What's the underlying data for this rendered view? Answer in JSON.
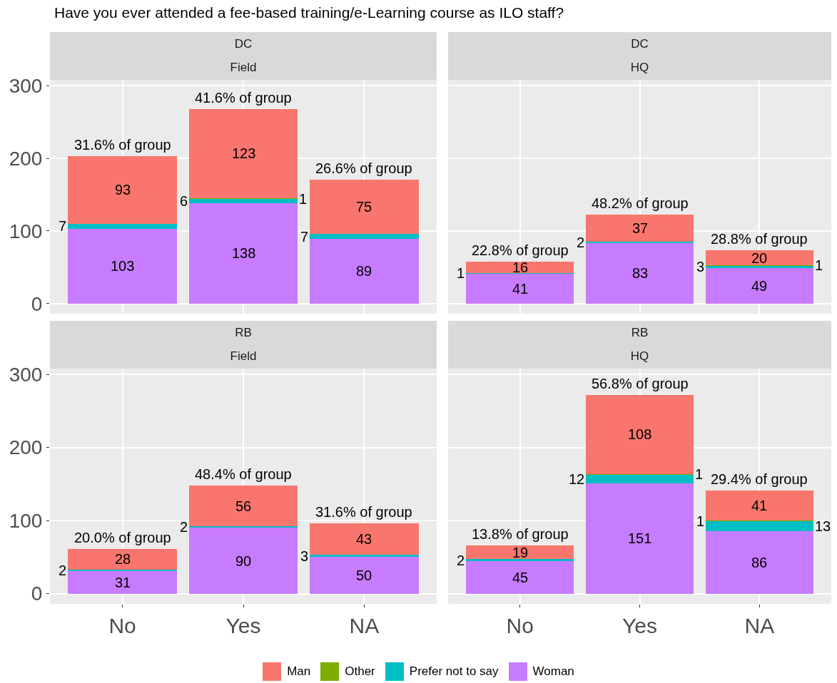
{
  "chart_data": [
    {
      "type": "bar",
      "title": "DC",
      "subtitle": "Field",
      "categories": [
        "No",
        "Yes",
        "NA"
      ],
      "stacked": true,
      "data_labels": true,
      "ylim": [
        -14,
        308
      ],
      "yticks": [
        0,
        100,
        200,
        300
      ],
      "grid": true,
      "legend": "bottom",
      "tick_labels": "y",
      "annotations": [
        "Have you ever attended a fee-based training/e-Learning course as ILO staff?",
        {
          "text": "31.6% of group",
          "x": "No",
          "y": 203
        },
        {
          "text": "41.6% of group",
          "x": "Yes",
          "y": 268
        },
        {
          "text": "26.6% of group",
          "x": "NA",
          "y": 171
        }
      ],
      "series": [
        {
          "name": "Woman",
          "color": "#c77cff",
          "values": [
            103,
            138,
            89
          ]
        },
        {
          "name": "Prefer not to say",
          "color": "#00bfc4",
          "values": [
            7,
            6,
            7
          ]
        },
        {
          "name": "Other",
          "color": "#7cae00",
          "values": [
            null,
            1,
            null
          ]
        },
        {
          "name": "Man",
          "color": "#f8766d",
          "values": [
            93,
            123,
            75
          ]
        }
      ]
    },
    {
      "type": "bar",
      "title": "DC",
      "subtitle": "HQ",
      "categories": [
        "No",
        "Yes",
        "NA"
      ],
      "stacked": true,
      "data_labels": true,
      "ylim": [
        -14,
        308
      ],
      "yticks": [
        0,
        100,
        200,
        300
      ],
      "grid": true,
      "tick_labels": false,
      "annotations": [
        {
          "text": "22.8% of group",
          "x": "No",
          "y": 58
        },
        {
          "text": "48.2% of group",
          "x": "Yes",
          "y": 122
        },
        {
          "text": "28.8% of group",
          "x": "NA",
          "y": 73
        }
      ],
      "series": [
        {
          "name": "Woman",
          "color": "#c77cff",
          "values": [
            41,
            83,
            49
          ]
        },
        {
          "name": "Prefer not to say",
          "color": "#00bfc4",
          "values": [
            1,
            2,
            3
          ]
        },
        {
          "name": "Other",
          "color": "#7cae00",
          "values": [
            null,
            null,
            1
          ]
        },
        {
          "name": "Man",
          "color": "#f8766d",
          "values": [
            16,
            37,
            20
          ]
        }
      ]
    },
    {
      "type": "bar",
      "title": "RB",
      "subtitle": "Field",
      "categories": [
        "No",
        "Yes",
        "NA"
      ],
      "stacked": true,
      "data_labels": true,
      "ylim": [
        -14,
        308
      ],
      "yticks": [
        0,
        100,
        200,
        300
      ],
      "grid": true,
      "annotations": [
        {
          "text": "20.0% of group",
          "x": "No",
          "y": 61
        },
        {
          "text": "48.4% of group",
          "x": "Yes",
          "y": 148
        },
        {
          "text": "31.6% of group",
          "x": "NA",
          "y": 96
        }
      ],
      "series": [
        {
          "name": "Woman",
          "color": "#c77cff",
          "values": [
            31,
            90,
            50
          ]
        },
        {
          "name": "Prefer not to say",
          "color": "#00bfc4",
          "values": [
            2,
            2,
            3
          ]
        },
        {
          "name": "Man",
          "color": "#f8766d",
          "values": [
            28,
            56,
            43
          ]
        }
      ]
    },
    {
      "type": "bar",
      "title": "RB",
      "subtitle": "HQ",
      "categories": [
        "No",
        "Yes",
        "NA"
      ],
      "stacked": true,
      "data_labels": true,
      "ylim": [
        -14,
        308
      ],
      "yticks": [
        0,
        100,
        200,
        300
      ],
      "grid": true,
      "tick_labels": "x",
      "annotations": [
        {
          "text": "13.8% of group",
          "x": "No",
          "y": 66
        },
        {
          "text": "56.8% of group",
          "x": "Yes",
          "y": 272
        },
        {
          "text": "29.4% of group",
          "x": "NA",
          "y": 141
        }
      ],
      "series": [
        {
          "name": "Woman",
          "color": "#c77cff",
          "values": [
            45,
            151,
            86
          ]
        },
        {
          "name": "Prefer not to say",
          "color": "#00bfc4",
          "values": [
            2,
            12,
            13
          ]
        },
        {
          "name": "Other",
          "color": "#7cae00",
          "values": [
            null,
            1,
            1
          ]
        },
        {
          "name": "Man",
          "color": "#f8766d",
          "values": [
            19,
            108,
            41
          ]
        }
      ]
    }
  ]
}
